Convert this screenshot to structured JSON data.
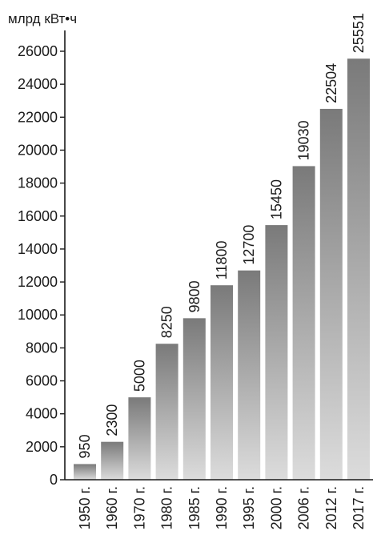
{
  "chart_data": {
    "type": "bar",
    "ylabel": "млрд кВт•ч",
    "categories": [
      "1950 г.",
      "1960 г.",
      "1970 г.",
      "1980 г.",
      "1985 г.",
      "1990 г.",
      "1995 г.",
      "2000 г.",
      "2006 г.",
      "2012 г.",
      "2017 г."
    ],
    "values": [
      950,
      2300,
      5000,
      8250,
      9800,
      11800,
      12700,
      15450,
      19030,
      22504,
      25551
    ],
    "value_labels": [
      "950",
      "2300",
      "5000",
      "8250",
      "9800",
      "11800",
      "12700",
      "15450",
      "19030",
      "22504",
      "25551"
    ],
    "ylim": [
      0,
      26000
    ],
    "yticks": [
      0,
      2000,
      4000,
      6000,
      8000,
      10000,
      12000,
      14000,
      16000,
      18000,
      20000,
      22000,
      24000,
      26000
    ],
    "ytick_labels": [
      "0",
      "2000",
      "4000",
      "6000",
      "8000",
      "10000",
      "12000",
      "14000",
      "16000",
      "18000",
      "20000",
      "22000",
      "24000",
      "26000"
    ],
    "grid": false,
    "legend": "none",
    "colors": {
      "bar_top": "#7a7a7a",
      "bar_bottom": "#dcdcdc",
      "axis": "#1a1a1a",
      "text": "#1a1a1a"
    }
  }
}
